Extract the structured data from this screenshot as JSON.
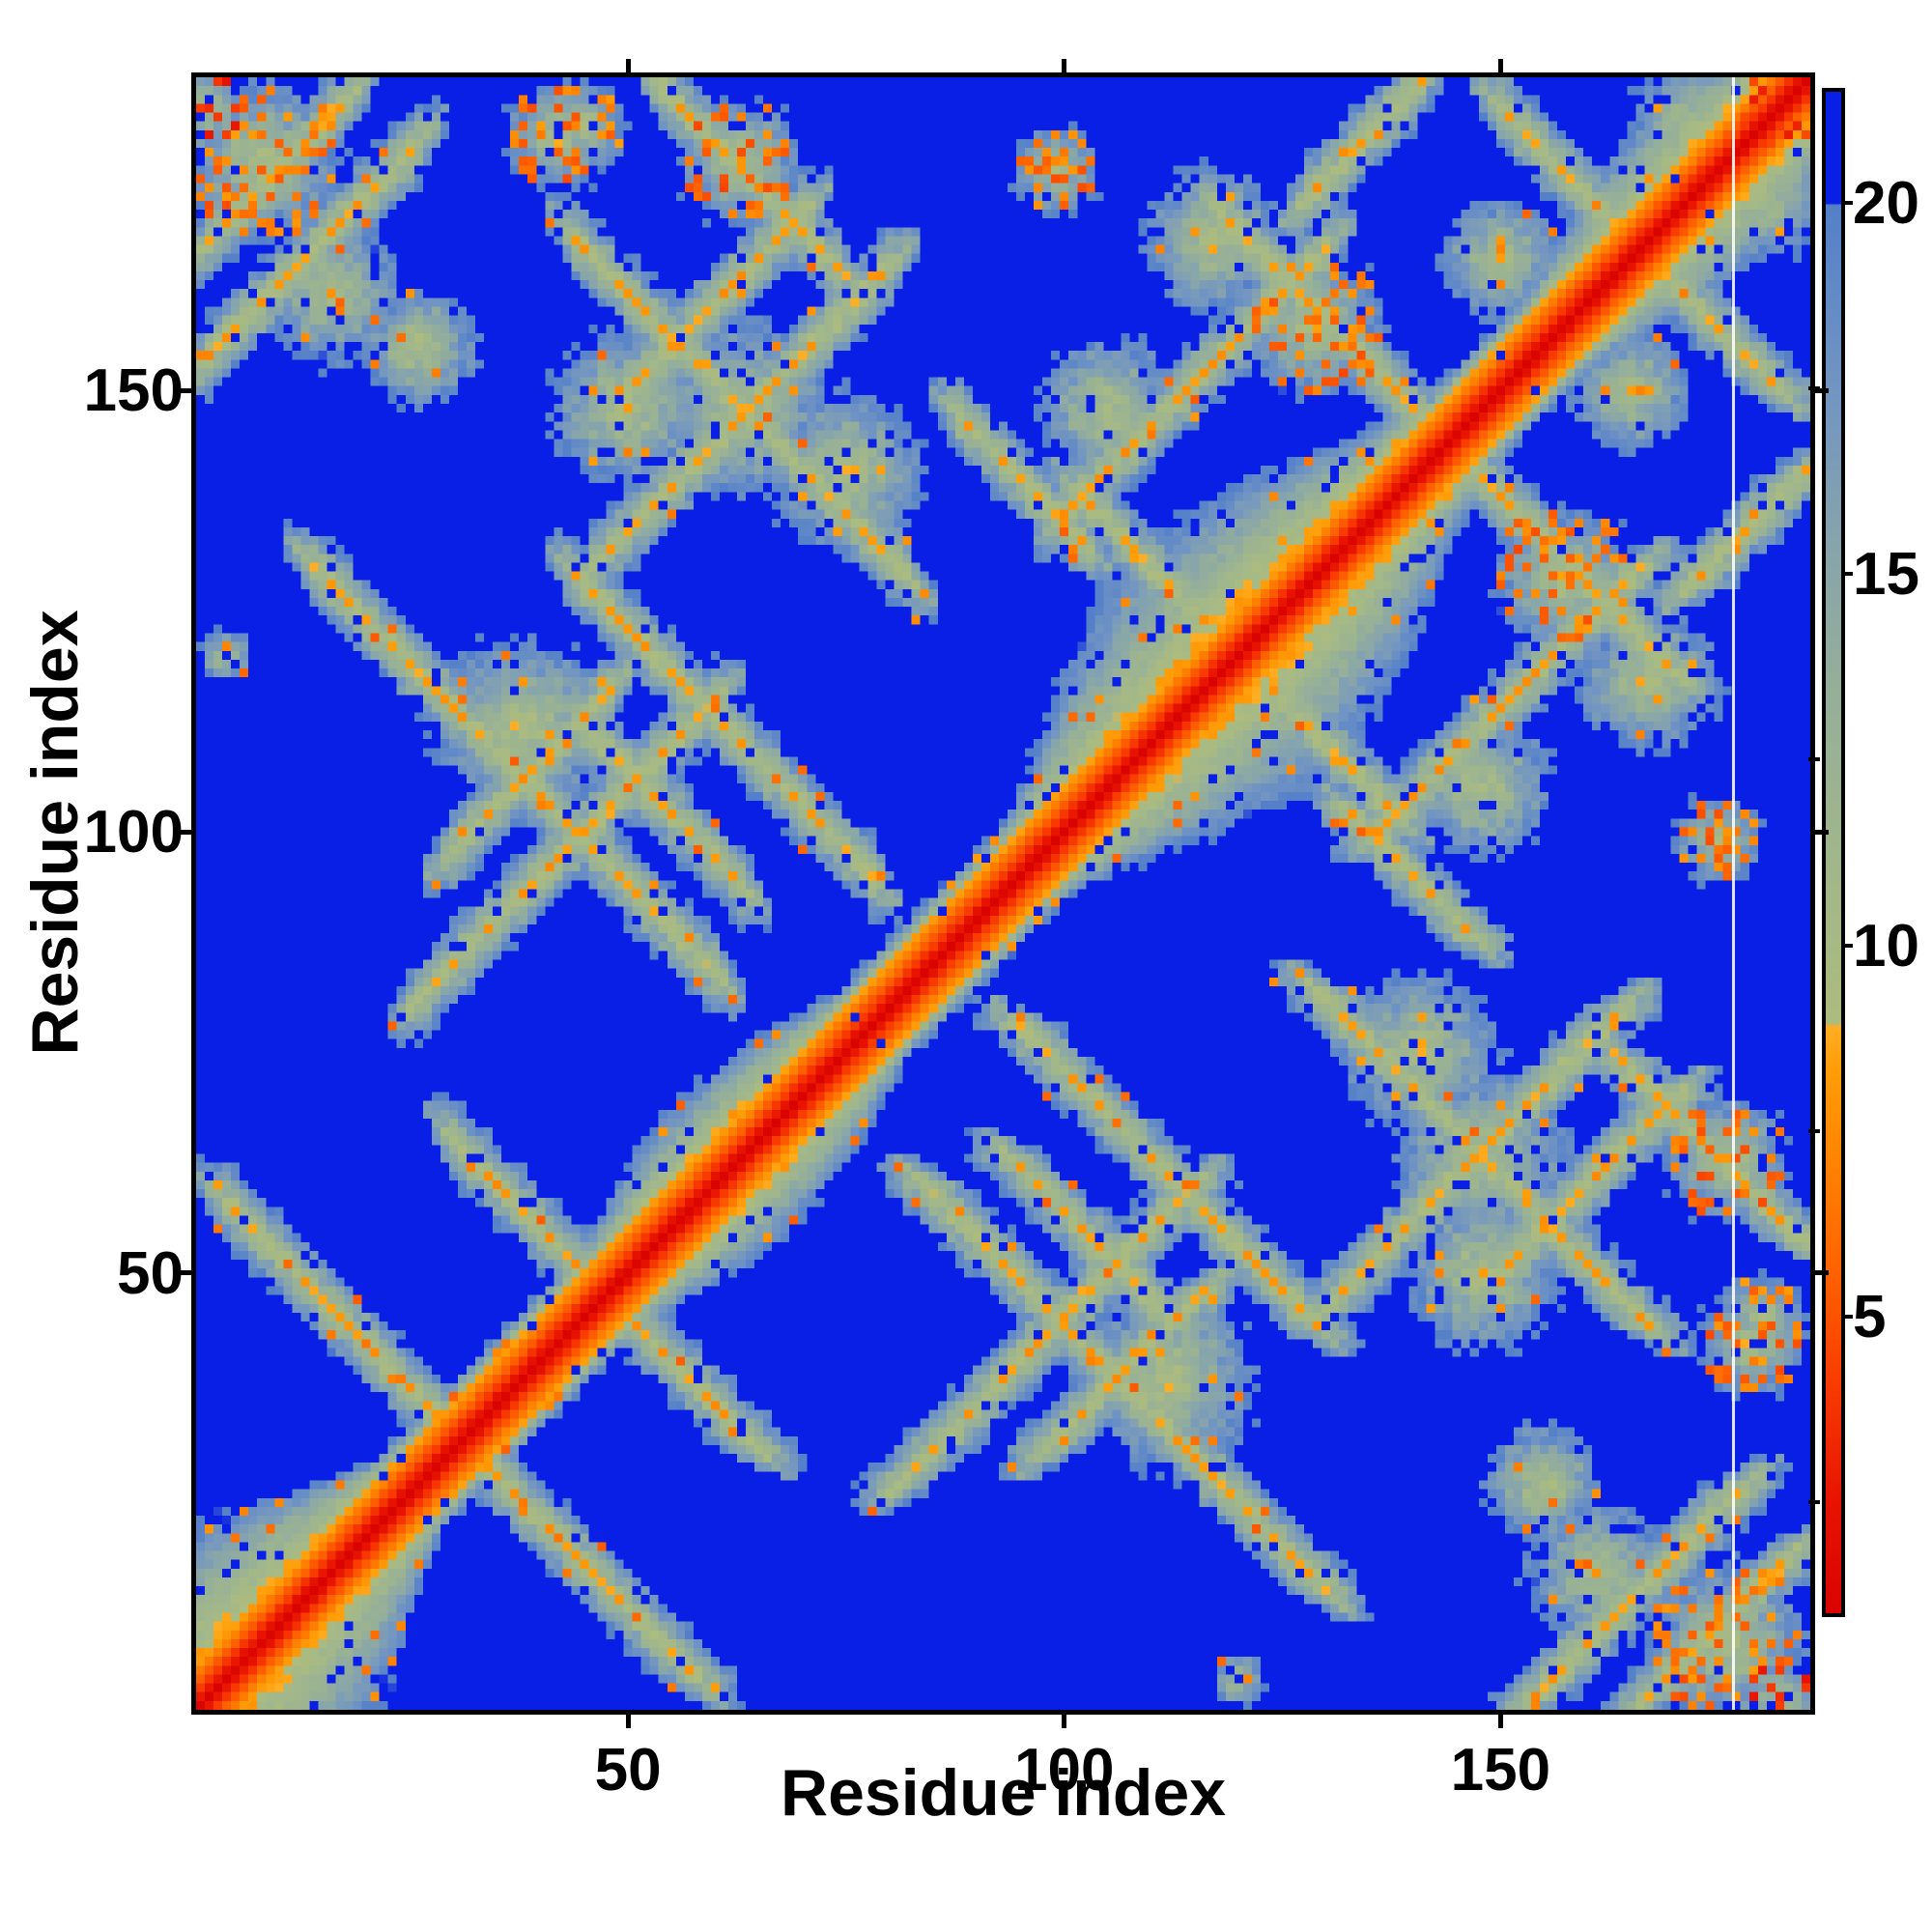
{
  "axes": {
    "xlabel": "Residue index",
    "ylabel": "Residue index",
    "x_ticks": [
      50,
      100,
      150
    ],
    "y_ticks": [
      50,
      100,
      150
    ],
    "x_range": [
      1,
      185
    ],
    "y_range": [
      1,
      185
    ]
  },
  "colorbar": {
    "tick_labels": [
      5,
      10,
      15,
      20
    ],
    "minor_ticks": [
      2.5,
      7.5,
      12.5,
      17.5
    ],
    "vmin": 1.0,
    "vmax": 21.5,
    "over_threshold": 20.0
  },
  "chart_data": {
    "type": "heatmap",
    "title": "",
    "xlabel": "Residue index",
    "ylabel": "Residue index",
    "x_range": [
      1,
      185
    ],
    "y_range": [
      1,
      185
    ],
    "n_residues": 185,
    "value_range": [
      1.0,
      21.5
    ],
    "description": "Symmetric residue-residue distance matrix of a ~185-residue protein. Red diagonal (near-zero distance), orange flanks, sage/steel-blue halo for mid-range distances, saturated blue for distances above ~20. Anti-diagonal 'X' motifs mark antiparallel secondary-structure contacts; off-diagonal patches mark tertiary contacts; a thin white artifact column sits near residue 177.",
    "colormap_stops": [
      [
        1.0,
        "#d90400"
      ],
      [
        2.5,
        "#e81400"
      ],
      [
        4.0,
        "#f83a00"
      ],
      [
        5.5,
        "#ff6000"
      ],
      [
        7.0,
        "#ff8200"
      ],
      [
        8.3,
        "#ff9d08"
      ],
      [
        8.9,
        "#ffae24"
      ],
      [
        8.95,
        "#adbc7e"
      ],
      [
        11.0,
        "#a2b78a"
      ],
      [
        13.5,
        "#95af9a"
      ],
      [
        15.5,
        "#86a4ad"
      ],
      [
        17.5,
        "#7295c2"
      ],
      [
        19.2,
        "#5e87c8"
      ],
      [
        19.98,
        "#5480c9"
      ],
      [
        20.0,
        "#0a1fe6"
      ],
      [
        21.5,
        "#0a1fe6"
      ]
    ],
    "synthesis": {
      "n": 185,
      "band": {
        "red_base": 1.0,
        "red_slope": 1.45,
        "orange_until_k": 5,
        "sage_rise": 12.0,
        "halfwidth_base": 12,
        "halfwidth_mod1": [
          7,
          0.11,
          1.0
        ],
        "halfwidth_mod2": [
          5,
          0.047,
          2.0
        ],
        "halfwidth_min": 6.5
      },
      "antidiagonal_contacts": [
        [
          62,
          4,
          31
        ],
        [
          95,
          30,
          47
        ],
        [
          144,
          14,
          60
        ],
        [
          157,
          45,
          63
        ],
        [
          173,
          44,
          78
        ],
        [
          211,
          44,
          82
        ],
        [
          238,
          54,
          74
        ],
        [
          235,
          88,
          102
        ],
        [
          240,
          102,
          120
        ],
        [
          288,
          118,
          144
        ],
        [
          332,
          150,
          166
        ]
      ],
      "diagonal_contacts": [
        [
          84,
          46,
          80
        ],
        [
          100,
          50,
          70
        ],
        [
          55,
          26,
          60
        ],
        [
          68,
          30,
          48
        ],
        [
          152,
          2,
          26
        ],
        [
          165,
          2,
          18
        ],
        [
          36,
          100,
          130
        ],
        [
          44,
          128,
          141
        ]
      ],
      "blobs": [
        [
          8,
          176,
          9,
          "orange"
        ],
        [
          2,
          182,
          4,
          "hot"
        ],
        [
          16,
          161,
          8,
          "sage"
        ],
        [
          26,
          155,
          7,
          "sage"
        ],
        [
          42,
          179,
          6,
          "orange"
        ],
        [
          63,
          176,
          7,
          "orange"
        ],
        [
          38,
          112,
          10,
          "sage"
        ],
        [
          4,
          120,
          3,
          "sage"
        ],
        [
          50,
          148,
          9,
          "sage"
        ],
        [
          75,
          141,
          9,
          "sage"
        ],
        [
          63,
          148,
          10,
          "sage"
        ],
        [
          129,
          157,
          8,
          "orange"
        ],
        [
          105,
          148,
          8,
          "sage"
        ],
        [
          99,
          175,
          5,
          "orange"
        ],
        [
          117,
          167,
          8,
          "sage"
        ],
        [
          122,
          130,
          7,
          "sage"
        ],
        [
          45,
          180,
          5,
          "orange"
        ],
        [
          172,
          180,
          7,
          "sage"
        ],
        [
          180,
          183,
          4,
          "hot"
        ],
        [
          150,
          165,
          7,
          "sage"
        ]
      ],
      "speckle": {
        "blue_hole_p": 0.055,
        "orange_dot_p": 0.028,
        "near_diag_blue_p": 0.015
      },
      "artifact_column": 177
    }
  }
}
